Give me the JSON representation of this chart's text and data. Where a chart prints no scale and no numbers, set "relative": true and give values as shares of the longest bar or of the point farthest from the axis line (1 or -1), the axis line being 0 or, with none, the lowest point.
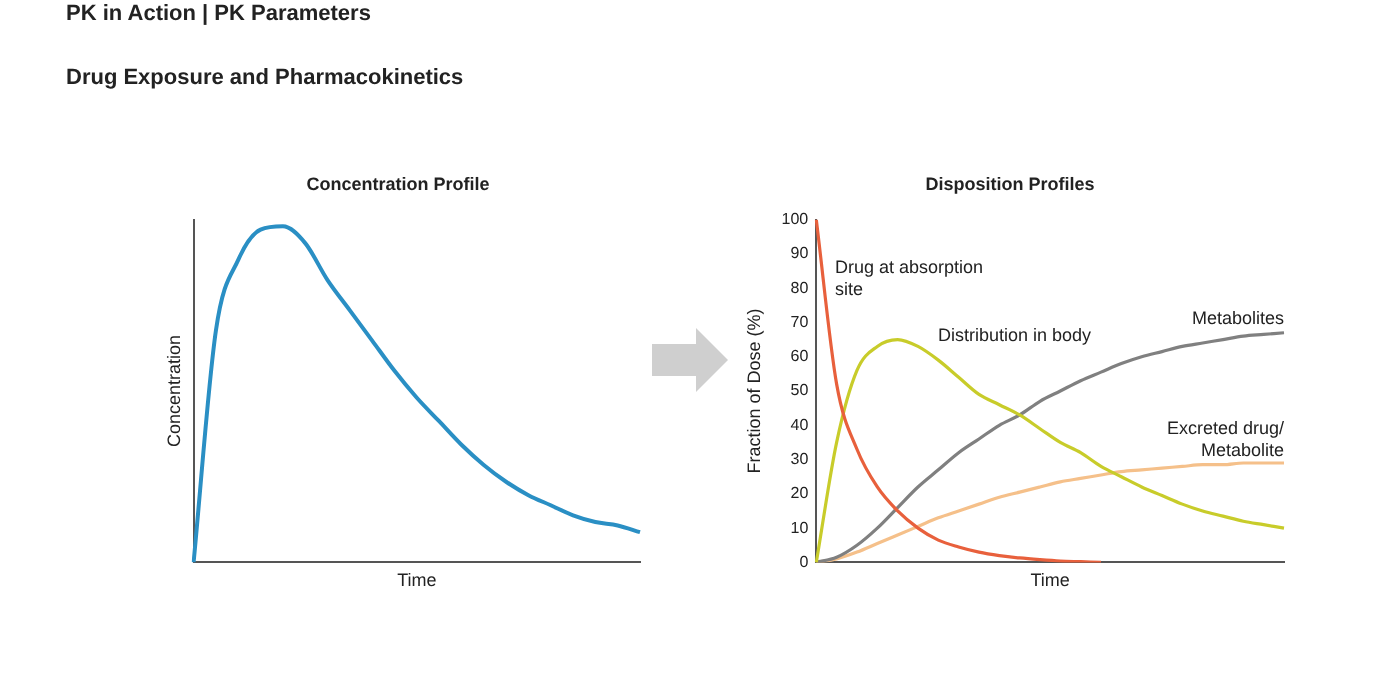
{
  "chart_data": [
    {
      "type": "line",
      "title": "Concentration Profile",
      "xlabel": "Time",
      "ylabel": "Concentration",
      "relative": true,
      "annotations": [
        "PK in Action | PK Parameters",
        "Drug Exposure and Pharmacokinetics"
      ],
      "categories": [
        null,
        null,
        null,
        null,
        null,
        null,
        null,
        null,
        null,
        null,
        null,
        null,
        null,
        null,
        null,
        null,
        null,
        null,
        null,
        null,
        null
      ],
      "series": [
        {
          "color": "#2a8fc4",
          "values": [
            0,
            0.69,
            0.9,
            0.99,
            1,
            0.95,
            0.84,
            0.75,
            0.66,
            0.57,
            0.49,
            0.42,
            0.35,
            0.29,
            0.24,
            0.2,
            0.17,
            0.14,
            0.12,
            0.11,
            0.09
          ]
        }
      ],
      "grid": false,
      "legend": false,
      "marker": "none",
      "line_style": "solid"
    },
    {
      "type": "line",
      "title": "Disposition Profiles",
      "xlabel": "Time",
      "ylabel": "Fraction of Dose (%)",
      "categories": [
        null,
        null,
        null,
        null,
        null,
        null,
        null,
        null,
        null,
        null,
        null,
        null,
        null,
        null,
        null,
        null,
        null,
        null,
        null,
        null,
        null,
        null,
        null,
        null
      ],
      "ylim": [
        0,
        100
      ],
      "yticks": [
        0,
        10,
        20,
        30,
        40,
        50,
        60,
        70,
        80,
        90,
        100
      ],
      "series": [
        {
          "name": "Drug at absorption site",
          "color": "#e8603c",
          "values": [
            100,
            52,
            33,
            22,
            15,
            10,
            6.5,
            4.5,
            3,
            2,
            1.3,
            0.8,
            0.4,
            0.2,
            0,
            null,
            null,
            null,
            null,
            null,
            null,
            null,
            null,
            null
          ]
        },
        {
          "name": "Distribution in body",
          "color": "#c8cc2a",
          "values": [
            0,
            35,
            56,
            63,
            65,
            63,
            59,
            54,
            49,
            46,
            43,
            39,
            35,
            32,
            28,
            25,
            22,
            19.5,
            17,
            15,
            13.5,
            12,
            11,
            10
          ]
        },
        {
          "name": "Metabolites",
          "color": "#808080",
          "values": [
            0,
            1.5,
            5,
            10,
            16,
            22,
            27,
            32,
            36,
            40,
            43,
            47,
            50,
            53,
            55.5,
            58,
            60,
            61.5,
            63,
            64,
            65,
            66,
            66.5,
            67
          ]
        },
        {
          "name": "Excreted drug/ Metabolite",
          "color": "#f5c08a",
          "values": [
            0,
            1,
            3,
            5.5,
            8,
            10.5,
            13,
            15,
            17,
            19,
            20.5,
            22,
            23.5,
            24.5,
            25.5,
            26.5,
            27,
            27.5,
            28,
            28.5,
            28.5,
            29,
            29,
            29
          ]
        }
      ],
      "grid": false,
      "legend": false,
      "marker": "none",
      "line_style": "solid"
    }
  ]
}
